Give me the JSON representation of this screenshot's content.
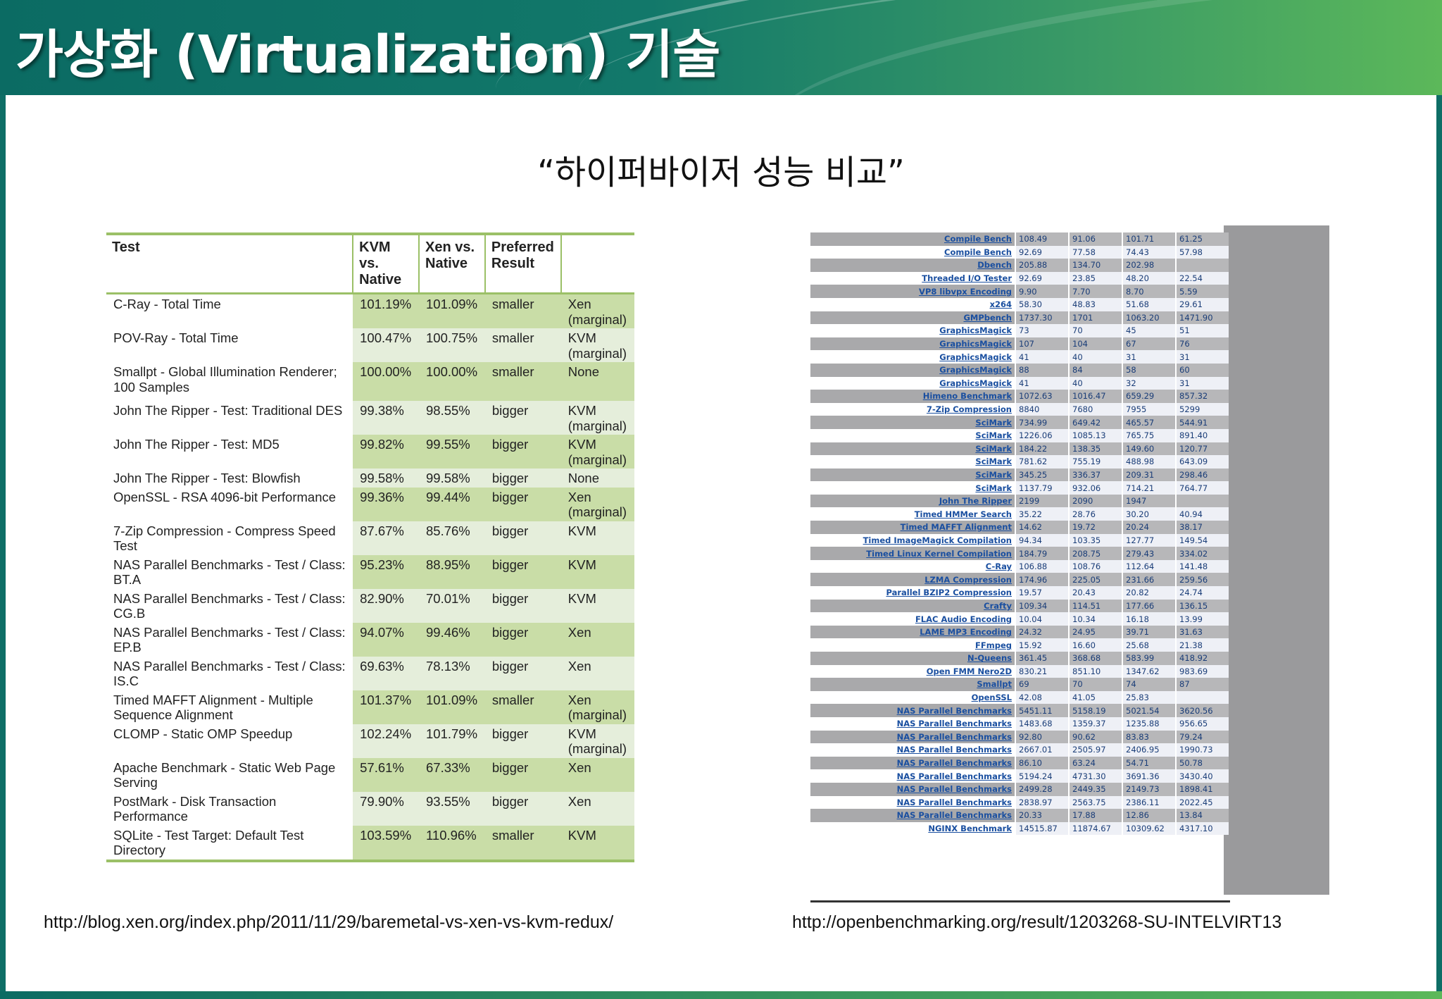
{
  "slide": {
    "title": "가상화 (Virtualization) 기술",
    "subtitle": "“하이퍼바이저 성능 비교”",
    "url_left": "http://blog.xen.org/index.php/2011/11/29/baremetal-vs-xen-vs-kvm-redux/",
    "url_right": "http://openbenchmarking.org/result/1203268-SU-INTELVIRT13"
  },
  "left_table": {
    "headers": [
      "Test",
      "KVM vs. Native",
      "Xen vs. Native",
      "Preferred Result",
      ""
    ],
    "rows": [
      [
        "C-Ray - Total Time",
        "101.19%",
        "101.09%",
        "smaller",
        "Xen (marginal)"
      ],
      [
        "POV-Ray - Total Time",
        "100.47%",
        "100.75%",
        "smaller",
        "KVM (marginal)"
      ],
      [
        "Smallpt - Global Illumination Renderer; 100 Samples",
        "100.00%",
        "100.00%",
        "smaller",
        "None"
      ],
      [
        "John The Ripper - Test: Traditional DES",
        "99.38%",
        "98.55%",
        "bigger",
        "KVM (marginal)"
      ],
      [
        "John The Ripper - Test: MD5",
        "99.82%",
        "99.55%",
        "bigger",
        "KVM (marginal)"
      ],
      [
        "John The Ripper - Test: Blowfish",
        "99.58%",
        "99.58%",
        "bigger",
        "None"
      ],
      [
        "OpenSSL - RSA 4096-bit Performance",
        "99.36%",
        "99.44%",
        "bigger",
        "Xen (marginal)"
      ],
      [
        "7-Zip Compression - Compress Speed Test",
        "87.67%",
        "85.76%",
        "bigger",
        "KVM"
      ],
      [
        "NAS Parallel Benchmarks - Test / Class: BT.A",
        "95.23%",
        "88.95%",
        "bigger",
        "KVM"
      ],
      [
        "NAS Parallel Benchmarks - Test / Class: CG.B",
        "82.90%",
        "70.01%",
        "bigger",
        "KVM"
      ],
      [
        "NAS Parallel Benchmarks - Test / Class: EP.B",
        "94.07%",
        "99.46%",
        "bigger",
        "Xen"
      ],
      [
        "NAS Parallel Benchmarks - Test / Class: IS.C",
        "69.63%",
        "78.13%",
        "bigger",
        "Xen"
      ],
      [
        "Timed MAFFT Alignment - Multiple Sequence Alignment",
        "101.37%",
        "101.09%",
        "smaller",
        "Xen (marginal)"
      ],
      [
        "CLOMP - Static OMP Speedup",
        "102.24%",
        "101.79%",
        "bigger",
        "KVM (marginal)"
      ],
      [
        "Apache Benchmark - Static Web Page Serving",
        "57.61%",
        "67.33%",
        "bigger",
        "Xen"
      ],
      [
        "PostMark - Disk Transaction Performance",
        "79.90%",
        "93.55%",
        "bigger",
        "Xen"
      ],
      [
        "SQLite - Test Target: Default Test Directory",
        "103.59%",
        "110.96%",
        "smaller",
        "KVM"
      ]
    ]
  },
  "right_table": {
    "rows": [
      [
        "Compile Bench",
        "108.49",
        "91.06",
        "101.71",
        "61.25"
      ],
      [
        "Compile Bench",
        "92.69",
        "77.58",
        "74.43",
        "57.98"
      ],
      [
        "Dbench",
        "205.88",
        "134.70",
        "202.98",
        ""
      ],
      [
        "Threaded I/O Tester",
        "92.69",
        "23.85",
        "48.20",
        "22.54"
      ],
      [
        "VP8 libvpx Encoding",
        "9.90",
        "7.70",
        "8.70",
        "5.59"
      ],
      [
        "x264",
        "58.30",
        "48.83",
        "51.68",
        "29.61"
      ],
      [
        "GMPbench",
        "1737.30",
        "1701",
        "1063.20",
        "1471.90"
      ],
      [
        "GraphicsMagick",
        "73",
        "70",
        "45",
        "51"
      ],
      [
        "GraphicsMagick",
        "107",
        "104",
        "67",
        "76"
      ],
      [
        "GraphicsMagick",
        "41",
        "40",
        "31",
        "31"
      ],
      [
        "GraphicsMagick",
        "88",
        "84",
        "58",
        "60"
      ],
      [
        "GraphicsMagick",
        "41",
        "40",
        "32",
        "31"
      ],
      [
        "Himeno Benchmark",
        "1072.63",
        "1016.47",
        "659.29",
        "857.32"
      ],
      [
        "7-Zip Compression",
        "8840",
        "7680",
        "7955",
        "5299"
      ],
      [
        "SciMark",
        "734.99",
        "649.42",
        "465.57",
        "544.91"
      ],
      [
        "SciMark",
        "1226.06",
        "1085.13",
        "765.75",
        "891.40"
      ],
      [
        "SciMark",
        "184.22",
        "138.35",
        "149.60",
        "120.77"
      ],
      [
        "SciMark",
        "781.62",
        "755.19",
        "488.98",
        "643.09"
      ],
      [
        "SciMark",
        "345.25",
        "336.37",
        "209.31",
        "298.46"
      ],
      [
        "SciMark",
        "1137.79",
        "932.06",
        "714.21",
        "764.77"
      ],
      [
        "John The Ripper",
        "2199",
        "2090",
        "1947",
        ""
      ],
      [
        "Timed HMMer Search",
        "35.22",
        "28.76",
        "30.20",
        "40.94"
      ],
      [
        "Timed MAFFT Alignment",
        "14.62",
        "19.72",
        "20.24",
        "38.17"
      ],
      [
        "Timed ImageMagick Compilation",
        "94.34",
        "103.35",
        "127.77",
        "149.54"
      ],
      [
        "Timed Linux Kernel Compilation",
        "184.79",
        "208.75",
        "279.43",
        "334.02"
      ],
      [
        "C-Ray",
        "106.88",
        "108.76",
        "112.64",
        "141.48"
      ],
      [
        "LZMA Compression",
        "174.96",
        "225.05",
        "231.66",
        "259.56"
      ],
      [
        "Parallel BZIP2 Compression",
        "19.57",
        "20.43",
        "20.82",
        "24.74"
      ],
      [
        "Crafty",
        "109.34",
        "114.51",
        "177.66",
        "136.15"
      ],
      [
        "FLAC Audio Encoding",
        "10.04",
        "10.34",
        "16.18",
        "13.99"
      ],
      [
        "LAME MP3 Encoding",
        "24.32",
        "24.95",
        "39.71",
        "31.63"
      ],
      [
        "FFmpeg",
        "15.92",
        "16.60",
        "25.68",
        "21.38"
      ],
      [
        "N-Queens",
        "361.45",
        "368.68",
        "583.99",
        "418.92"
      ],
      [
        "Open FMM Nero2D",
        "830.21",
        "851.10",
        "1347.62",
        "983.69"
      ],
      [
        "Smallpt",
        "69",
        "70",
        "74",
        "87"
      ],
      [
        "OpenSSL",
        "42.08",
        "41.05",
        "25.83",
        ""
      ],
      [
        "NAS Parallel Benchmarks",
        "5451.11",
        "5158.19",
        "5021.54",
        "3620.56"
      ],
      [
        "NAS Parallel Benchmarks",
        "1483.68",
        "1359.37",
        "1235.88",
        "956.65"
      ],
      [
        "NAS Parallel Benchmarks",
        "92.80",
        "90.62",
        "83.83",
        "79.24"
      ],
      [
        "NAS Parallel Benchmarks",
        "2667.01",
        "2505.97",
        "2406.95",
        "1990.73"
      ],
      [
        "NAS Parallel Benchmarks",
        "86.10",
        "63.24",
        "54.71",
        "50.78"
      ],
      [
        "NAS Parallel Benchmarks",
        "5194.24",
        "4731.30",
        "3691.36",
        "3430.40"
      ],
      [
        "NAS Parallel Benchmarks",
        "2499.28",
        "2449.35",
        "2149.73",
        "1898.41"
      ],
      [
        "NAS Parallel Benchmarks",
        "2838.97",
        "2563.75",
        "2386.11",
        "2022.45"
      ],
      [
        "NAS Parallel Benchmarks",
        "20.33",
        "17.88",
        "12.86",
        "13.84"
      ],
      [
        "NGINX Benchmark",
        "14515.87",
        "11874.67",
        "10309.62",
        "4317.10"
      ]
    ]
  }
}
